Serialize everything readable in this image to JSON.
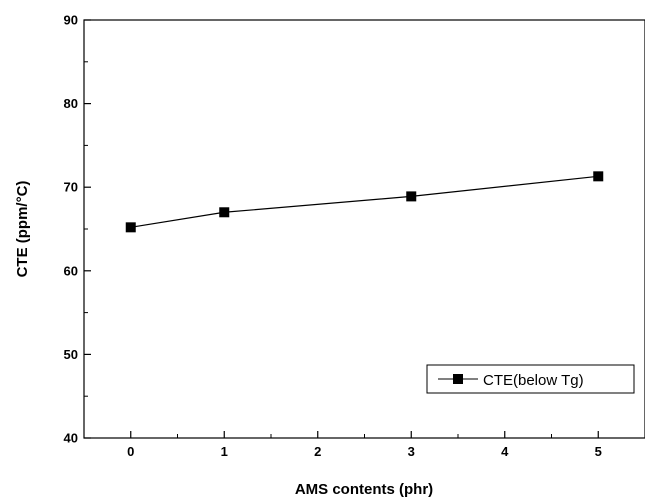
{
  "chart_data": {
    "type": "line",
    "xlabel": "AMS contents (phr)",
    "ylabel": "CTE (ppm/°C)",
    "xlim": [
      -0.5,
      5.5
    ],
    "ylim": [
      40,
      90
    ],
    "x_ticks": [
      0,
      1,
      2,
      3,
      4,
      5
    ],
    "y_ticks": [
      40,
      50,
      60,
      70,
      80,
      90
    ],
    "grid": false,
    "legend_position": "lower-right",
    "series": [
      {
        "name": "CTE(below Tg)",
        "marker": "square",
        "color": "#000000",
        "x": [
          0,
          1,
          3,
          5
        ],
        "y": [
          65.2,
          67.0,
          68.9,
          71.3
        ]
      }
    ]
  }
}
